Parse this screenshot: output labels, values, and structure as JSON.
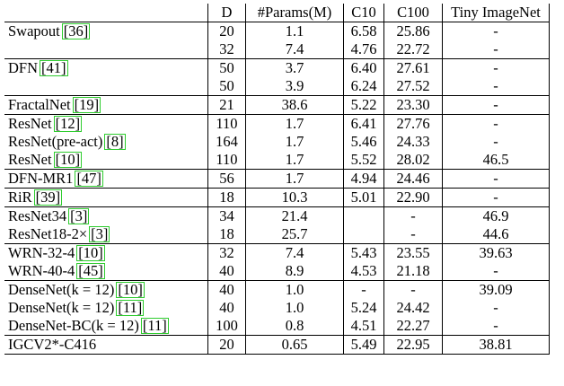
{
  "caption_fragment": "",
  "headers": [
    "",
    "D",
    "#Params(M)",
    "C10",
    "C100",
    "Tiny ImageNet"
  ],
  "groups": [
    [
      {
        "name": "Swapout",
        "cite": "[36]",
        "d": "20",
        "params": "1.1",
        "c10": "6.58",
        "c100": "25.86",
        "tiny": "-"
      },
      {
        "name": "",
        "cite": "",
        "d": "32",
        "params": "7.4",
        "c10": "4.76",
        "c100": "22.72",
        "tiny": "-"
      }
    ],
    [
      {
        "name": "DFN",
        "cite": "[41]",
        "d": "50",
        "params": "3.7",
        "c10": "6.40",
        "c100": "27.61",
        "tiny": "-"
      },
      {
        "name": "",
        "cite": "",
        "d": "50",
        "params": "3.9",
        "c10": "6.24",
        "c100": "27.52",
        "tiny": "-"
      }
    ],
    [
      {
        "name": "FractalNet",
        "cite": "[19]",
        "d": "21",
        "params": "38.6",
        "c10": "5.22",
        "c100": "23.30",
        "tiny": "-"
      }
    ],
    [
      {
        "name": "ResNet",
        "cite": "[12]",
        "d": "110",
        "params": "1.7",
        "c10": "6.41",
        "c100": "27.76",
        "tiny": "-"
      },
      {
        "name": "ResNet(pre-act)",
        "cite": "[8]",
        "d": "164",
        "params": "1.7",
        "c10": "5.46",
        "c100": "24.33",
        "tiny": "-"
      },
      {
        "name": "ResNet",
        "cite": "[10]",
        "d": "110",
        "params": "1.7",
        "c10": "5.52",
        "c100": "28.02",
        "tiny": "46.5"
      }
    ],
    [
      {
        "name": "DFN-MR1",
        "cite": "[47]",
        "d": "56",
        "params": "1.7",
        "c10": "4.94",
        "c100": "24.46",
        "tiny": "-"
      }
    ],
    [
      {
        "name": "RiR",
        "cite": "[39]",
        "d": "18",
        "params": "10.3",
        "c10": "5.01",
        "c100": "22.90",
        "tiny": "-"
      }
    ],
    [
      {
        "name": "ResNet34",
        "cite": "[3]",
        "d": "34",
        "params": "21.4",
        "c10": "",
        "c100": "-",
        "tiny": "46.9"
      },
      {
        "name": "ResNet18-2×",
        "cite": "[3]",
        "d": "18",
        "params": "25.7",
        "c10": "",
        "c100": "-",
        "tiny": "44.6"
      }
    ],
    [
      {
        "name": "WRN-32-4",
        "cite": "[10]",
        "d": "32",
        "params": "7.4",
        "c10": "5.43",
        "c100": "23.55",
        "tiny": "39.63"
      },
      {
        "name": "WRN-40-4",
        "cite": "[45]",
        "d": "40",
        "params": "8.9",
        "c10": "4.53",
        "c100": "21.18",
        "tiny": "-"
      }
    ],
    [
      {
        "name": "DenseNet(k = 12)",
        "cite": "[10]",
        "d": "40",
        "params": "1.0",
        "c10": "-",
        "c100": "-",
        "tiny": "39.09"
      },
      {
        "name": "DenseNet(k = 12)",
        "cite": "[11]",
        "d": "40",
        "params": "1.0",
        "c10": "5.24",
        "c100": "24.42",
        "tiny": "-"
      },
      {
        "name": "DenseNet-BC(k = 12)",
        "cite": "[11]",
        "d": "100",
        "params": "0.8",
        "c10": "4.51",
        "c100": "22.27",
        "tiny": "-"
      }
    ],
    [
      {
        "name": "IGCV2*-C416",
        "cite": "",
        "d": "20",
        "params": "0.65",
        "c10": "5.49",
        "c100": "22.95",
        "tiny": "38.81"
      }
    ]
  ]
}
